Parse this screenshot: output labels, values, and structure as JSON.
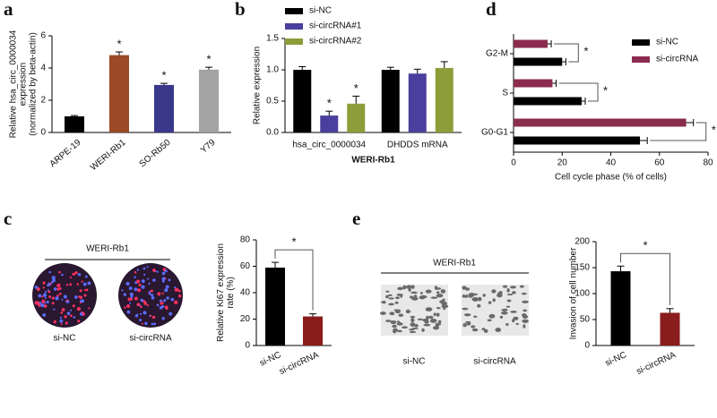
{
  "chart_data": [
    {
      "type": "bar",
      "panel_label": "a",
      "ylabel": [
        "Relative hsa_circ_0000034",
        "expression",
        "(normalized by beta-actin)"
      ],
      "categories": [
        "ARPE-19",
        "WERI-Rb1",
        "SO-Rb50",
        "Y79"
      ],
      "values": [
        1.0,
        4.8,
        2.95,
        3.9
      ],
      "errors": [
        0.05,
        0.2,
        0.1,
        0.15
      ],
      "colors": [
        "#000000",
        "#9b4a26",
        "#3a388a",
        "#a3a3a3"
      ],
      "significance": [
        null,
        "*",
        "*",
        "*"
      ],
      "ylim": [
        0,
        6
      ],
      "yticks": [
        0,
        2,
        4,
        6
      ]
    },
    {
      "type": "bar",
      "panel_label": "b",
      "ylabel": [
        "Relative expression"
      ],
      "xlabel": "WERI-Rb1",
      "categories": [
        "hsa_circ_0000034",
        "DHDDS mRNA"
      ],
      "series": [
        {
          "name": "si-NC",
          "color": "#000000",
          "values": [
            1.0,
            1.0
          ],
          "errors": [
            0.05,
            0.04
          ],
          "significance": [
            null,
            null
          ]
        },
        {
          "name": "si-circRNA#1",
          "color": "#4a3f9c",
          "values": [
            0.27,
            0.94
          ],
          "errors": [
            0.07,
            0.07
          ],
          "significance": [
            "*",
            null
          ]
        },
        {
          "name": "si-circRNA#2",
          "color": "#8c9d3a",
          "values": [
            0.46,
            1.03
          ],
          "errors": [
            0.12,
            0.1
          ],
          "significance": [
            "*",
            null
          ]
        }
      ],
      "ylim": [
        0,
        1.5
      ],
      "yticks": [
        {
          "value": 0,
          "label": "0.0"
        },
        0.5,
        {
          "value": 1,
          "label": "1.0"
        },
        1.5
      ]
    },
    {
      "type": "barh",
      "panel_label": "d",
      "xlabel": "Cell cycle phase (% of cells)",
      "categories": [
        "G2-M",
        "S",
        "G0-G1"
      ],
      "series": [
        {
          "name": "si-NC",
          "color": "#000000",
          "values": [
            20,
            28,
            52
          ],
          "errors": [
            1.5,
            1.5,
            3
          ]
        },
        {
          "name": "si-circRNA",
          "color": "#8b2c4e",
          "values": [
            14,
            16,
            71
          ],
          "errors": [
            1.5,
            1.5,
            3
          ]
        }
      ],
      "significance": [
        "*",
        "*",
        "*"
      ],
      "xlim": [
        0,
        80
      ],
      "xticks": [
        0,
        20,
        40,
        60,
        80
      ]
    },
    {
      "type": "bar",
      "panel_label": "c",
      "image_title": "WERI-Rb1",
      "image_labels": [
        "si-NC",
        "si-circRNA"
      ],
      "ylabel": [
        "Relative Ki67 expression",
        "rate (%)"
      ],
      "categories": [
        "si-NC",
        "si-circRNA"
      ],
      "values": [
        59,
        22
      ],
      "errors": [
        4,
        2
      ],
      "colors": [
        "#000000",
        "#8b1c1c"
      ],
      "significance": "*",
      "ylim": [
        0,
        80
      ],
      "yticks": [
        0,
        20,
        40,
        60,
        80
      ]
    },
    {
      "type": "bar",
      "panel_label": "e",
      "image_title": "WERI-Rb1",
      "image_labels": [
        "si-NC",
        "si-circRNA"
      ],
      "ylabel": [
        "Invasion of cell number"
      ],
      "categories": [
        "si-NC",
        "si-circRNA"
      ],
      "values": [
        143,
        63
      ],
      "errors": [
        10,
        8
      ],
      "colors": [
        "#000000",
        "#8b1c1c"
      ],
      "significance": "*",
      "ylim": [
        0,
        200
      ],
      "yticks": [
        0,
        50,
        100,
        150,
        200
      ]
    }
  ]
}
